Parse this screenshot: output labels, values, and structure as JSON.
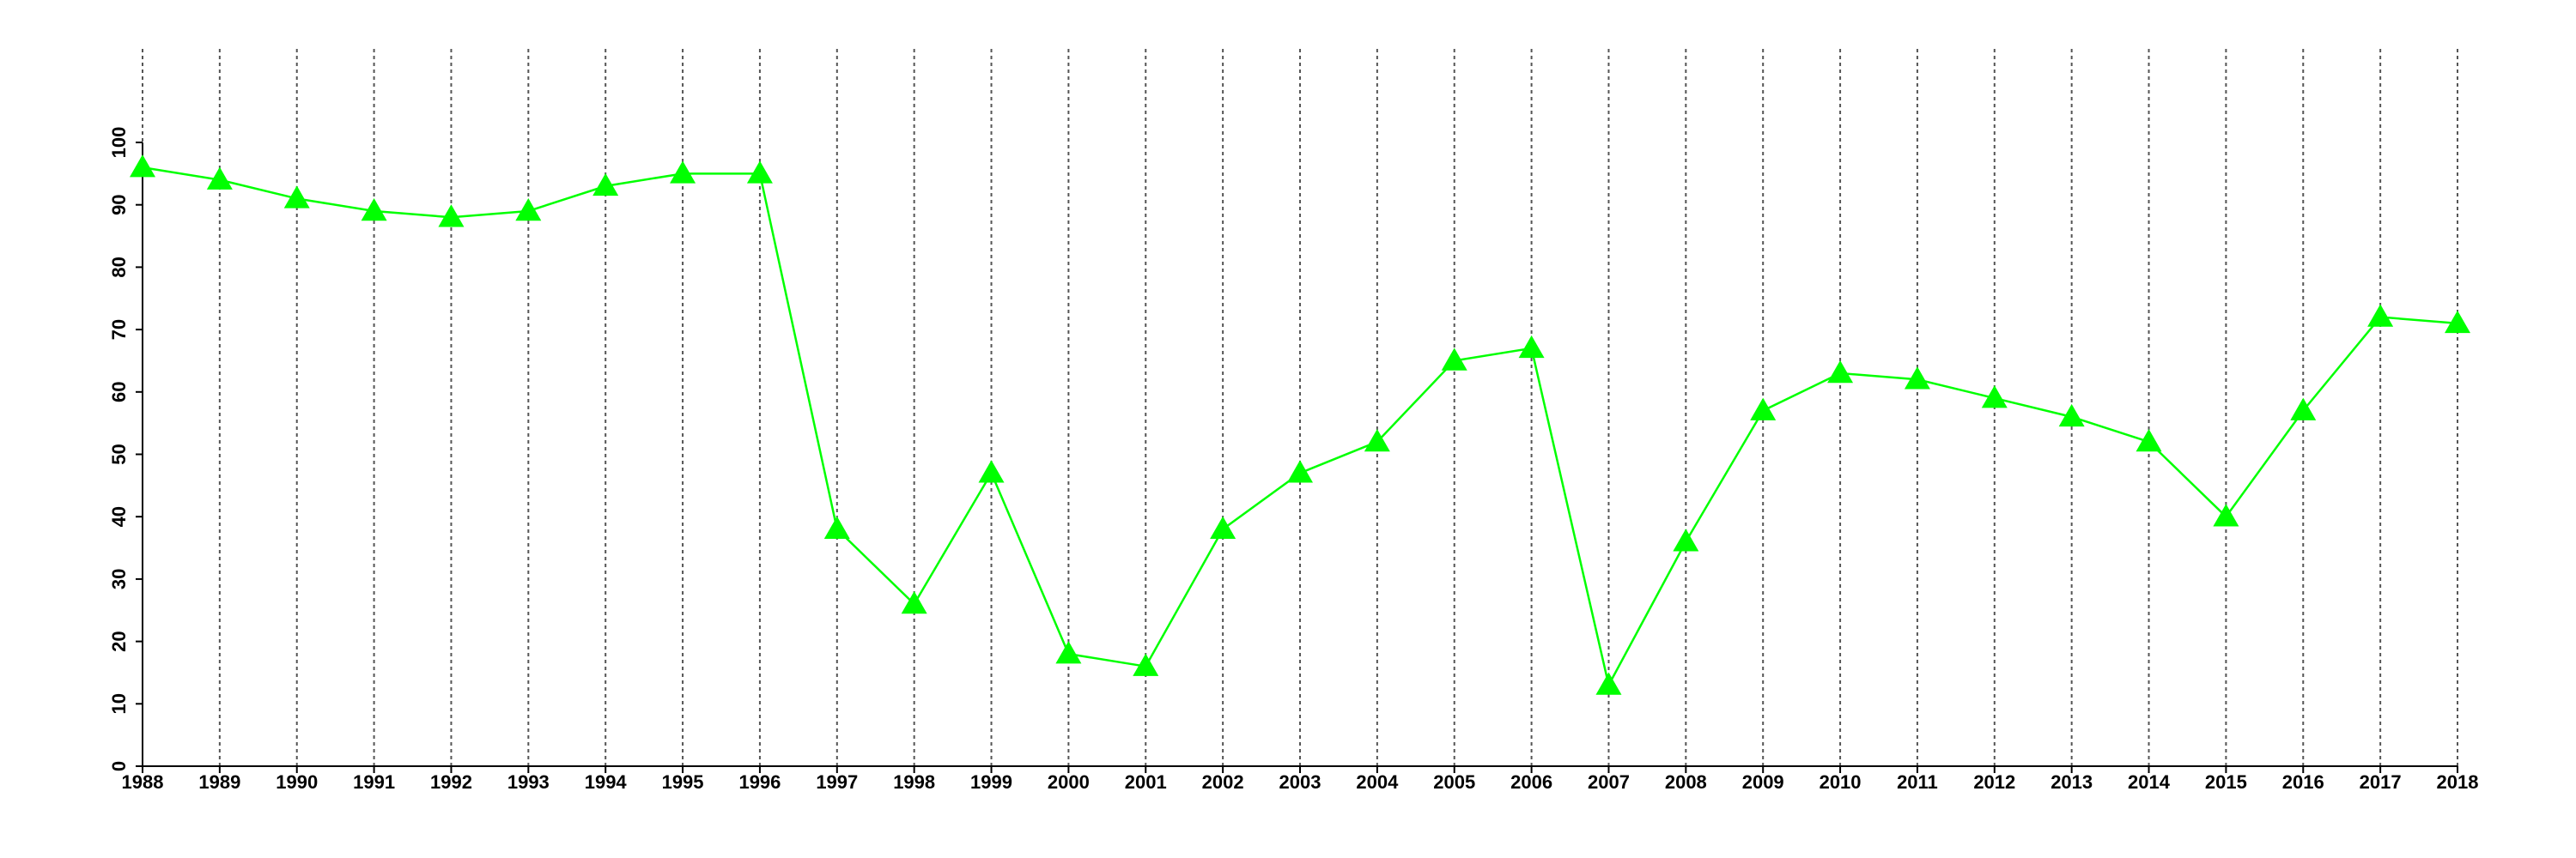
{
  "chart_data": {
    "type": "line",
    "x": [
      1988,
      1989,
      1990,
      1991,
      1992,
      1993,
      1994,
      1995,
      1996,
      1997,
      1998,
      1999,
      2000,
      2001,
      2002,
      2003,
      2004,
      2005,
      2006,
      2007,
      2008,
      2009,
      2010,
      2011,
      2012,
      2013,
      2014,
      2015,
      2016,
      2017,
      2018
    ],
    "series": [
      {
        "color": "#00ff00",
        "marker": "triangle",
        "values": [
          96,
          94,
          91,
          89,
          88,
          89,
          93,
          95,
          95,
          38,
          26,
          47,
          18,
          16,
          38,
          47,
          52,
          65,
          67,
          13,
          36,
          57,
          63,
          62,
          59,
          56,
          52,
          40,
          57,
          72,
          71
        ]
      }
    ],
    "xlim": [
      1988,
      2018
    ],
    "xticks": [
      1988,
      1989,
      1990,
      1991,
      1992,
      1993,
      1994,
      1995,
      1996,
      1997,
      1998,
      1999,
      2000,
      2001,
      2002,
      2003,
      2004,
      2005,
      2006,
      2007,
      2008,
      2009,
      2010,
      2011,
      2012,
      2013,
      2014,
      2015,
      2016,
      2017,
      2018
    ],
    "ylim": [
      0,
      100
    ],
    "yticks": [
      0,
      10,
      20,
      30,
      40,
      50,
      60,
      70,
      80,
      90,
      100
    ],
    "grid": "x"
  }
}
